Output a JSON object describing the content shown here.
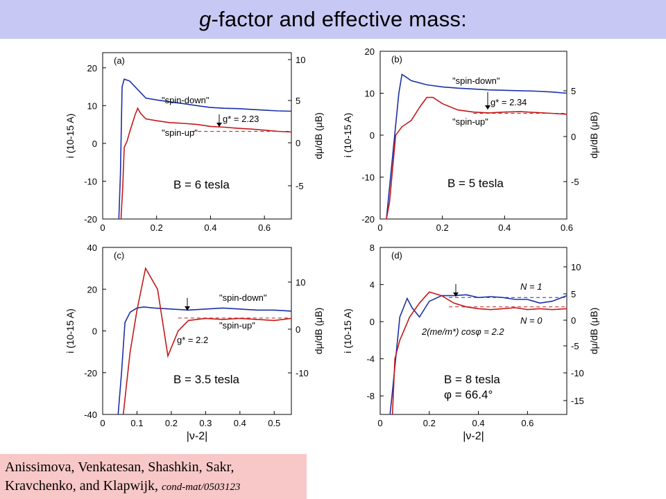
{
  "header": {
    "title_italic": "g",
    "title_rest": "-factor and effective mass:"
  },
  "citation": {
    "authors_line1": "Anissimova, Venkatesan, Shashkin, Sakr,",
    "authors_line2": "Kravchenko, and Klapwijk,",
    "ref": "cond-mat/0503123"
  },
  "colors": {
    "blue": "#1a2fa8",
    "red": "#c41818",
    "title_bg": "#c8c8f4",
    "citation_bg": "#f8c8c8"
  },
  "chart_data": [
    {
      "id": "a",
      "type": "line",
      "panel_label": "(a)",
      "xlabel": "",
      "ylabel_left": "i (10-15 A)",
      "ylabel_right": "dμ/dB (μB)",
      "xlim": [
        0,
        0.7
      ],
      "xticks": [
        "0",
        "0.2",
        "0.4",
        "0.6"
      ],
      "ylim": [
        -20,
        24
      ],
      "yticks": [
        "-20",
        "-10",
        "0",
        "10",
        "20"
      ],
      "right_ticks": [
        "-5",
        "0",
        "5",
        "10"
      ],
      "field_label": "B = 6 tesla",
      "annotations": [
        "\"spin-down\"",
        "\"spin-up\"",
        "g* = 2.23"
      ],
      "series": [
        {
          "name": "spin-down",
          "color": "#1a2fa8",
          "x": [
            0.06,
            0.066,
            0.072,
            0.08,
            0.1,
            0.12,
            0.14,
            0.16,
            0.2,
            0.25,
            0.3,
            0.35,
            0.4,
            0.45,
            0.5,
            0.55,
            0.6,
            0.65,
            0.7
          ],
          "y": [
            -20,
            -8,
            15,
            17,
            16.5,
            15,
            13.5,
            12,
            11.5,
            11,
            10.5,
            10,
            9.5,
            9.3,
            9.2,
            9,
            8.8,
            8.6,
            8.5
          ]
        },
        {
          "name": "spin-up",
          "color": "#c41818",
          "x": [
            0.068,
            0.074,
            0.08,
            0.09,
            0.1,
            0.12,
            0.13,
            0.14,
            0.16,
            0.2,
            0.25,
            0.3,
            0.35,
            0.4,
            0.45,
            0.5,
            0.55,
            0.6,
            0.65,
            0.7
          ],
          "y": [
            -20,
            -12,
            -1,
            0.5,
            3,
            7.5,
            9.3,
            8,
            6.5,
            6,
            5.5,
            5.3,
            5,
            4.5,
            4.3,
            4,
            3.8,
            3.5,
            3.2,
            3
          ]
        }
      ]
    },
    {
      "id": "b",
      "type": "line",
      "panel_label": "(b)",
      "xlabel": "",
      "ylabel_left": "i (10-15 A)",
      "ylabel_right": "dμ/dB (μB)",
      "xlim": [
        0,
        0.6
      ],
      "xticks": [
        "0",
        "0.2",
        "0.4",
        "0.6"
      ],
      "ylim": [
        -20,
        20
      ],
      "yticks": [
        "-20",
        "-10",
        "0",
        "10",
        "20"
      ],
      "right_ticks": [
        "-5",
        "0",
        "5"
      ],
      "field_label": "B = 5 tesla",
      "annotations": [
        "\"spin-down\"",
        "\"spin-up\"",
        "g* = 2.34"
      ],
      "series": [
        {
          "name": "spin-down",
          "color": "#1a2fa8",
          "x": [
            0.02,
            0.04,
            0.06,
            0.07,
            0.08,
            0.1,
            0.15,
            0.2,
            0.25,
            0.3,
            0.35,
            0.4,
            0.45,
            0.5,
            0.55,
            0.6
          ],
          "y": [
            -20,
            -5,
            10,
            14.5,
            14,
            13,
            12,
            11.5,
            11.2,
            11,
            10.8,
            10.7,
            10.6,
            10.5,
            10.3,
            10
          ]
        },
        {
          "name": "spin-up",
          "color": "#c41818",
          "x": [
            0.02,
            0.03,
            0.04,
            0.05,
            0.07,
            0.1,
            0.13,
            0.15,
            0.17,
            0.2,
            0.25,
            0.3,
            0.35,
            0.4,
            0.45,
            0.5,
            0.55,
            0.6
          ],
          "y": [
            -20,
            -16,
            -8,
            0,
            2,
            3.5,
            7,
            9,
            9,
            7.5,
            6,
            5.5,
            5.3,
            5.5,
            5.6,
            5.4,
            5.2,
            5
          ]
        }
      ]
    },
    {
      "id": "c",
      "type": "line",
      "panel_label": "(c)",
      "xlabel": "|ν-2|",
      "ylabel_left": "i (10-15 A)",
      "ylabel_right": "dμ/dB (μB)",
      "xlim": [
        0,
        0.55
      ],
      "xticks": [
        "0",
        "0.1",
        "0.2",
        "0.3",
        "0.4",
        "0.5"
      ],
      "ylim": [
        -40,
        40
      ],
      "yticks": [
        "-40",
        "-20",
        "0",
        "20",
        "40"
      ],
      "right_ticks": [
        "-10",
        "0",
        "10"
      ],
      "field_label": "B = 3.5 tesla",
      "annotations": [
        "\"spin-down\"",
        "\"spin-up\"",
        "g* = 2.2"
      ],
      "series": [
        {
          "name": "spin-down",
          "color": "#1a2fa8",
          "x": [
            0.045,
            0.055,
            0.065,
            0.08,
            0.1,
            0.12,
            0.15,
            0.2,
            0.25,
            0.3,
            0.35,
            0.4,
            0.45,
            0.5,
            0.55
          ],
          "y": [
            -40,
            -20,
            4,
            9,
            11,
            11.5,
            11,
            10.5,
            10,
            10.5,
            11,
            10.5,
            10,
            10,
            9.5
          ]
        },
        {
          "name": "spin-up",
          "color": "#c41818",
          "x": [
            0.06,
            0.07,
            0.08,
            0.1,
            0.125,
            0.16,
            0.19,
            0.22,
            0.25,
            0.3,
            0.35,
            0.4,
            0.45,
            0.5,
            0.55
          ],
          "y": [
            -40,
            -25,
            -10,
            10,
            30,
            20,
            -12,
            0,
            5,
            6,
            5.5,
            6,
            5.5,
            5,
            6
          ]
        }
      ]
    },
    {
      "id": "d",
      "type": "line",
      "panel_label": "(d)",
      "xlabel": "|ν-2|",
      "ylabel_left": "i (10-15 A)",
      "ylabel_right": "dμ/dB (μB)",
      "xlim": [
        0,
        0.76
      ],
      "xticks": [
        "0",
        "0.2",
        "0.4",
        "0.6"
      ],
      "ylim": [
        -10,
        8
      ],
      "yticks": [
        "-8",
        "-4",
        "0",
        "4",
        "8"
      ],
      "right_ticks": [
        "-15",
        "-10",
        "-5",
        "0",
        "5",
        "10"
      ],
      "field_label": "B = 8 tesla",
      "phi_label": "φ = 66.4°",
      "annotations": [
        "N = 1",
        "N = 0",
        "2(me/m*) cosφ = 2.2"
      ],
      "series": [
        {
          "name": "N = 1",
          "color": "#1a2fa8",
          "x": [
            0.04,
            0.05,
            0.08,
            0.11,
            0.13,
            0.16,
            0.2,
            0.25,
            0.3,
            0.35,
            0.4,
            0.45,
            0.5,
            0.55,
            0.6,
            0.65,
            0.7,
            0.76
          ],
          "y": [
            -10,
            -7.5,
            0.5,
            2.5,
            1.5,
            0.5,
            2.2,
            2.8,
            2.8,
            2.9,
            2.6,
            2.7,
            2.6,
            2.4,
            2.4,
            2.0,
            2.2,
            2.8
          ]
        },
        {
          "name": "N = 0",
          "color": "#c41818",
          "x": [
            0.05,
            0.06,
            0.08,
            0.12,
            0.16,
            0.2,
            0.25,
            0.3,
            0.35,
            0.4,
            0.45,
            0.5,
            0.55,
            0.6,
            0.65,
            0.7,
            0.76
          ],
          "y": [
            -10,
            -4,
            -2,
            0.5,
            2,
            3.2,
            2.8,
            2.0,
            1.6,
            1.4,
            1.3,
            1.4,
            1.5,
            1.3,
            1.4,
            1.3,
            1.4
          ]
        }
      ]
    }
  ]
}
